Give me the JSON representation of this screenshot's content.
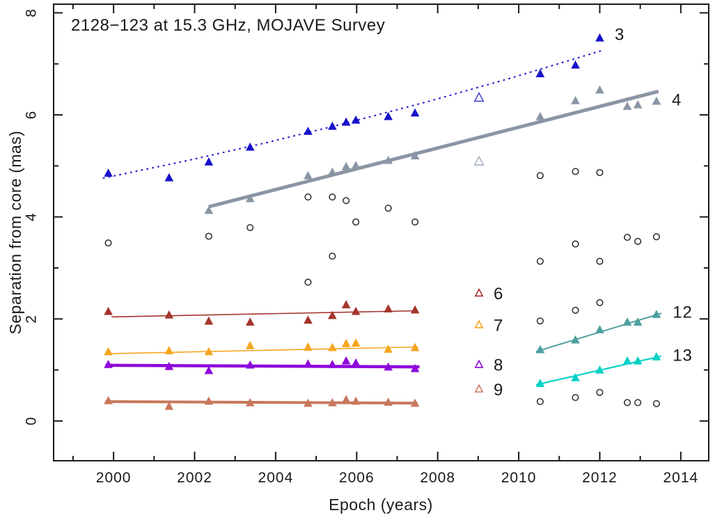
{
  "chart_data": {
    "type": "scatter",
    "title": "2128−123 at 15.3 GHz, MOJAVE Survey",
    "xlabel": "Epoch (years)",
    "ylabel": "Separation from core (mas)",
    "xlim": [
      1998.52,
      2014.69
    ],
    "ylim": [
      -0.78,
      8.17
    ],
    "grid": false,
    "background": "#ffffff",
    "axis_color": "#1a1a1a",
    "x_major_ticks": [
      2000,
      2002,
      2004,
      2006,
      2008,
      2010,
      2012,
      2014
    ],
    "x_minor_ticks": [
      1999,
      2001,
      2003,
      2005,
      2007,
      2009,
      2011,
      2013
    ],
    "y_major_ticks": [
      0,
      2,
      4,
      6,
      8
    ],
    "y_minor_ticks": [
      1,
      3,
      5,
      7
    ],
    "legend_position": "inline-component-number-labels",
    "series": [
      {
        "id": "3",
        "label": "3",
        "label_color": "#8585d8",
        "label_pos": [
          2012.37,
          7.58
        ],
        "marker": "triangle",
        "color": "#1712c9",
        "open_marker_color": "#4a46d0",
        "line": {
          "style": "dotted",
          "color": "#2a22d0",
          "width": 2.2,
          "points": [
            [
              1999.75,
              4.76
            ],
            [
              2001.8,
              5.1
            ],
            [
              2003.8,
              5.46
            ],
            [
              2005.8,
              5.85
            ],
            [
              2007.8,
              6.27
            ],
            [
              2009.8,
              6.72
            ],
            [
              2011.8,
              7.2
            ],
            [
              2012.05,
              7.26
            ]
          ]
        },
        "points": [
          [
            1999.87,
            4.85
          ],
          [
            2001.37,
            4.76
          ],
          [
            2002.35,
            5.07
          ],
          [
            2003.37,
            5.36
          ],
          [
            2004.8,
            5.67
          ],
          [
            2005.4,
            5.77
          ],
          [
            2005.74,
            5.85
          ],
          [
            2005.98,
            5.89
          ],
          [
            2006.78,
            5.96
          ],
          [
            2007.44,
            6.03
          ],
          [
            2009.02,
            6.33,
            "open"
          ],
          [
            2010.53,
            6.8
          ],
          [
            2011.4,
            6.97
          ],
          [
            2012.0,
            7.5
          ]
        ]
      },
      {
        "id": "4",
        "label": "4",
        "label_color": "#aab3bf",
        "label_pos": [
          2013.78,
          6.3
        ],
        "marker": "triangle",
        "color": "#8a95a5",
        "open_marker_color": "#aab3c0",
        "line": {
          "style": "solid",
          "color": "#8a95a5",
          "width": 5,
          "points": [
            [
              2002.35,
              4.2
            ],
            [
              2013.45,
              6.46
            ]
          ]
        },
        "points": [
          [
            2002.35,
            4.12
          ],
          [
            2003.37,
            4.35
          ],
          [
            2004.8,
            4.8
          ],
          [
            2005.4,
            4.87
          ],
          [
            2005.74,
            4.98
          ],
          [
            2005.98,
            5.0
          ],
          [
            2006.78,
            5.1
          ],
          [
            2007.44,
            5.19
          ],
          [
            2009.02,
            5.08,
            "open"
          ],
          [
            2010.53,
            5.96
          ],
          [
            2011.4,
            6.27
          ],
          [
            2012.0,
            6.48
          ],
          [
            2012.68,
            6.16
          ],
          [
            2012.94,
            6.19
          ],
          [
            2013.4,
            6.26
          ]
        ]
      },
      {
        "id": "6",
        "label": "",
        "label_color": "#d2736a",
        "label_pos": null,
        "marker": "triangle",
        "color": "#a5352c",
        "line": {
          "style": "solid",
          "color": "#a5352c",
          "width": 1.6,
          "points": [
            [
              1999.95,
              2.04
            ],
            [
              2007.5,
              2.16
            ]
          ]
        },
        "points": [
          [
            1999.87,
            2.14
          ],
          [
            2001.37,
            2.07
          ],
          [
            2002.35,
            1.95
          ],
          [
            2003.37,
            1.93
          ],
          [
            2004.8,
            1.97
          ],
          [
            2005.4,
            2.06
          ],
          [
            2005.74,
            2.27
          ],
          [
            2005.98,
            2.14
          ],
          [
            2006.78,
            2.19
          ],
          [
            2007.44,
            2.17
          ]
        ]
      },
      {
        "id": "7",
        "label": "",
        "label_color": "#f8c87e",
        "label_pos": null,
        "marker": "triangle",
        "color": "#f6a51f",
        "line": {
          "style": "solid",
          "color": "#f6a51f",
          "width": 1.6,
          "points": [
            [
              1999.95,
              1.32
            ],
            [
              2007.5,
              1.45
            ]
          ]
        },
        "points": [
          [
            1999.87,
            1.35
          ],
          [
            2001.37,
            1.37
          ],
          [
            2002.35,
            1.35
          ],
          [
            2003.37,
            1.47
          ],
          [
            2004.8,
            1.44
          ],
          [
            2005.4,
            1.43
          ],
          [
            2005.74,
            1.51
          ],
          [
            2005.98,
            1.52
          ],
          [
            2006.78,
            1.4
          ],
          [
            2007.44,
            1.43
          ]
        ]
      },
      {
        "id": "8",
        "label": "",
        "label_color": "#c77ae8",
        "label_pos": null,
        "marker": "triangle",
        "color": "#8d08da",
        "line": {
          "style": "solid",
          "color": "#8d08da",
          "width": 4.5,
          "points": [
            [
              1999.8,
              1.09
            ],
            [
              2007.55,
              1.06
            ]
          ]
        },
        "points": [
          [
            1999.87,
            1.1
          ],
          [
            2001.37,
            1.06
          ],
          [
            2002.35,
            0.98
          ],
          [
            2003.37,
            1.09
          ],
          [
            2004.8,
            1.11
          ],
          [
            2005.4,
            1.1
          ],
          [
            2005.74,
            1.17
          ],
          [
            2005.98,
            1.13
          ],
          [
            2006.78,
            1.05
          ],
          [
            2007.44,
            1.02
          ]
        ]
      },
      {
        "id": "9",
        "label": "",
        "label_color": "#e0a795",
        "label_pos": null,
        "marker": "triangle",
        "color": "#c8785e",
        "line": {
          "style": "solid",
          "color": "#c8785e",
          "width": 4,
          "points": [
            [
              1999.8,
              0.38
            ],
            [
              2007.5,
              0.35
            ]
          ]
        },
        "points": [
          [
            1999.87,
            0.39
          ],
          [
            2001.37,
            0.28
          ],
          [
            2002.35,
            0.38
          ],
          [
            2003.37,
            0.35
          ],
          [
            2004.8,
            0.34
          ],
          [
            2005.4,
            0.35
          ],
          [
            2005.74,
            0.41
          ],
          [
            2005.98,
            0.38
          ],
          [
            2006.78,
            0.36
          ],
          [
            2007.44,
            0.34
          ]
        ]
      },
      {
        "id": "12",
        "label": "12",
        "label_color": "#93c4c4",
        "label_pos": [
          2013.8,
          2.14
        ],
        "marker": "triangle",
        "color": "#4d9e9e",
        "line": {
          "style": "solid",
          "color": "#4d9e9e",
          "width": 2,
          "points": [
            [
              2010.43,
              1.36
            ],
            [
              2013.52,
              2.11
            ]
          ]
        },
        "points": [
          [
            2010.53,
            1.39
          ],
          [
            2011.4,
            1.58
          ],
          [
            2012.0,
            1.78
          ],
          [
            2012.68,
            1.93
          ],
          [
            2012.94,
            1.93
          ],
          [
            2013.4,
            2.08
          ]
        ]
      },
      {
        "id": "13",
        "label": "13",
        "label_color": "#86e6df",
        "label_pos": [
          2013.8,
          1.29
        ],
        "marker": "triangle",
        "color": "#06d2c6",
        "line": {
          "style": "solid",
          "color": "#06d2c6",
          "width": 2.2,
          "points": [
            [
              2010.43,
              0.71
            ],
            [
              2013.52,
              1.27
            ]
          ]
        },
        "points": [
          [
            2010.53,
            0.73
          ],
          [
            2011.4,
            0.84
          ],
          [
            2012.0,
            0.99
          ],
          [
            2012.68,
            1.17
          ],
          [
            2012.94,
            1.17
          ],
          [
            2013.4,
            1.25
          ]
        ]
      }
    ],
    "legend_markers": [
      {
        "label": "6",
        "x": 2009.02,
        "y": 2.5,
        "color": "#a5352c",
        "label_color": "#d2736a"
      },
      {
        "label": "7",
        "x": 2009.02,
        "y": 1.88,
        "color": "#f6a51f",
        "label_color": "#f8c87e"
      },
      {
        "label": "8",
        "x": 2009.02,
        "y": 1.1,
        "color": "#8d08da",
        "label_color": "#c77ae8"
      },
      {
        "label": "9",
        "x": 2009.02,
        "y": 0.62,
        "color": "#cb7a60",
        "label_color": "#e0a795"
      }
    ],
    "unidentified_components": {
      "marker": "open-circle",
      "color": "#2b2b2b",
      "points": [
        [
          1999.87,
          3.49
        ],
        [
          2002.35,
          3.62
        ],
        [
          2003.37,
          3.79
        ],
        [
          2004.8,
          4.39
        ],
        [
          2005.4,
          4.39
        ],
        [
          2005.74,
          4.32
        ],
        [
          2005.98,
          3.9
        ],
        [
          2006.78,
          4.17
        ],
        [
          2007.44,
          3.9
        ],
        [
          2004.8,
          2.72
        ],
        [
          2005.4,
          3.23
        ],
        [
          2010.53,
          4.81
        ],
        [
          2011.4,
          4.89
        ],
        [
          2012.0,
          4.87
        ],
        [
          2010.53,
          3.13
        ],
        [
          2011.4,
          3.47
        ],
        [
          2012.0,
          3.13
        ],
        [
          2012.68,
          3.6
        ],
        [
          2012.94,
          3.52
        ],
        [
          2013.4,
          3.61
        ],
        [
          2010.53,
          1.96
        ],
        [
          2011.4,
          2.17
        ],
        [
          2012.0,
          2.32
        ],
        [
          2010.53,
          0.38
        ],
        [
          2011.4,
          0.46
        ],
        [
          2012.0,
          0.56
        ],
        [
          2012.68,
          0.36
        ],
        [
          2012.94,
          0.36
        ],
        [
          2013.4,
          0.34
        ]
      ]
    }
  }
}
